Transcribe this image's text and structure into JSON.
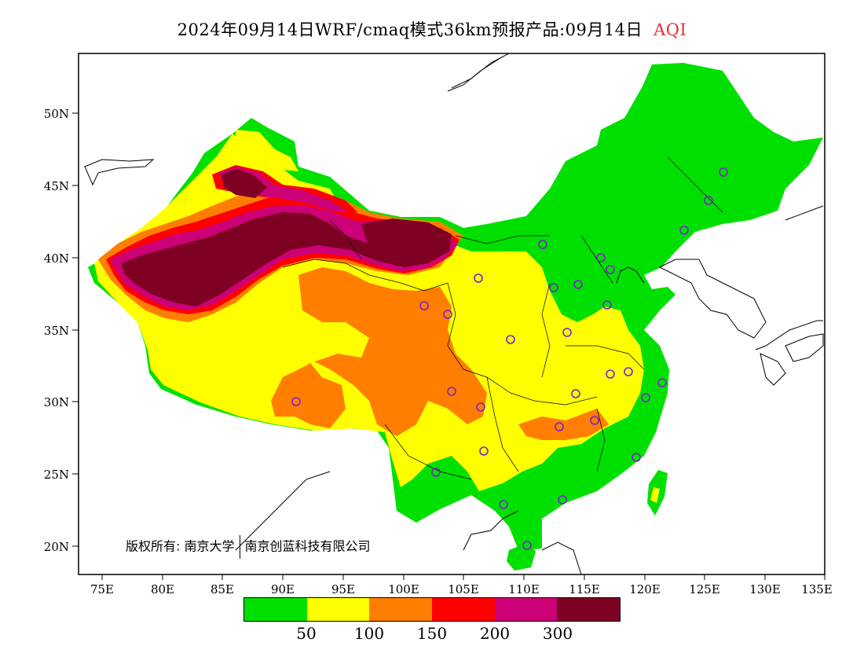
{
  "title": {
    "main": "2024年09月14日WRF/cmaq模式36km预报产品:09月14日",
    "variable": "AQI"
  },
  "axes": {
    "lat_ticks": [
      "50N",
      "45N",
      "40N",
      "35N",
      "30N",
      "25N",
      "20N"
    ],
    "lon_ticks": [
      "75E",
      "80E",
      "85E",
      "90E",
      "95E",
      "100E",
      "105E",
      "110E",
      "115E",
      "120E",
      "125E",
      "130E",
      "135E"
    ]
  },
  "legend": {
    "colors": [
      "#00e000",
      "#ffff00",
      "#ff7e00",
      "#ff0000",
      "#cc0077",
      "#7e0023"
    ],
    "labels": [
      "50",
      "100",
      "150",
      "200",
      "300"
    ]
  },
  "copyright": {
    "prefix": "版权所有:",
    "org1": "南京大学",
    "org2": "南京创蓝科技有限公司"
  },
  "colors": {
    "station_marker": "#7a22cc",
    "frame": "#000000"
  }
}
